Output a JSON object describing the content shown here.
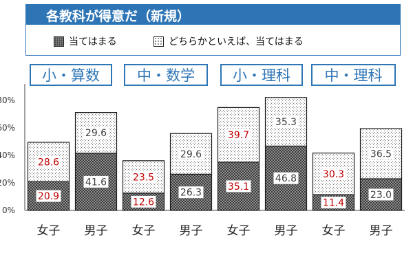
{
  "title": "各教科が得意だ（新規）",
  "legend": {
    "solid": "当てはまる",
    "dotted": "どちらかといえば、当てはまる"
  },
  "groups": [
    "小・算数",
    "中・数学",
    "小・理科",
    "中・理科"
  ],
  "colors": {
    "title_bg": "#2e75b6",
    "accent": "#2e75b6",
    "female_label": "#c00000",
    "male_label": "#404040"
  },
  "chart_data": {
    "type": "bar",
    "stacked": true,
    "categories": [
      "女子",
      "男子",
      "女子",
      "男子",
      "女子",
      "男子",
      "女子",
      "男子"
    ],
    "series": [
      {
        "name": "当てはまる",
        "values": [
          20.9,
          41.6,
          12.6,
          26.3,
          35.1,
          46.8,
          11.4,
          23.0
        ]
      },
      {
        "name": "どちらかといえば、当てはまる",
        "values": [
          28.6,
          29.6,
          23.5,
          29.6,
          39.7,
          35.3,
          30.3,
          36.5
        ]
      }
    ],
    "ylim": [
      0,
      90
    ],
    "yticks": [
      "0%",
      "20%",
      "40%",
      "60%",
      "80%"
    ],
    "ytick_values": [
      0,
      20,
      40,
      60,
      80
    ]
  }
}
